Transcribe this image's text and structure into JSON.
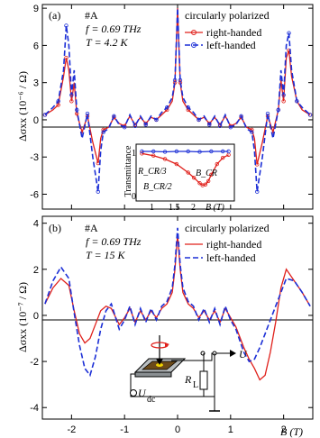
{
  "chart_data": [
    {
      "type": "line",
      "panel": "(a)",
      "ylabel": "Δσxx (10⁻⁶ / Ω)",
      "yticks": [
        -6,
        -3,
        0,
        3,
        6,
        9
      ],
      "ylim": [
        -7.2,
        9.3
      ],
      "xlim": [
        -2.55,
        2.55
      ],
      "sample": "#A",
      "frequency": "f = 0.69 THz",
      "temperature": "T = 4.2 K",
      "legend_title": "circularly polarized",
      "series": [
        {
          "name": "right-handed",
          "color": "#e0201b",
          "style": "solid-circles",
          "x": [
            -2.5,
            -2.35,
            -2.25,
            -2.15,
            -2.1,
            -2.05,
            -2.0,
            -1.95,
            -1.9,
            -1.8,
            -1.7,
            -1.6,
            -1.5,
            -1.45,
            -1.4,
            -1.3,
            -1.2,
            -1.1,
            -1.0,
            -0.9,
            -0.8,
            -0.7,
            -0.6,
            -0.5,
            -0.4,
            -0.3,
            -0.2,
            -0.1,
            -0.05,
            0.0,
            0.05,
            0.1,
            0.2,
            0.3,
            0.4,
            0.5,
            0.6,
            0.7,
            0.8,
            0.9,
            1.0,
            1.1,
            1.2,
            1.3,
            1.4,
            1.45,
            1.5,
            1.6,
            1.7,
            1.8,
            1.9,
            1.95,
            2.0,
            2.05,
            2.1,
            2.15,
            2.25,
            2.35,
            2.5
          ],
          "y": [
            0.4,
            0.8,
            1.2,
            3.5,
            5.0,
            4.0,
            1.5,
            3.0,
            0.5,
            -1.0,
            0.3,
            -1.8,
            -3.5,
            -1.5,
            -0.8,
            -0.6,
            0.2,
            -0.3,
            -0.5,
            0.3,
            -0.4,
            0.2,
            -0.3,
            0.2,
            0.0,
            0.4,
            0.8,
            1.5,
            3.0,
            9.0,
            3.0,
            1.5,
            0.8,
            0.4,
            0.0,
            0.2,
            -0.3,
            0.2,
            -0.4,
            0.3,
            -0.5,
            -0.3,
            0.2,
            -0.6,
            -0.8,
            -1.5,
            -3.6,
            -1.8,
            0.3,
            -1.0,
            0.8,
            3.2,
            1.5,
            5.0,
            5.6,
            3.5,
            1.5,
            0.8,
            0.4
          ]
        },
        {
          "name": "left-handed",
          "color": "#1c2fd6",
          "style": "dashed-circles",
          "x": [
            -2.5,
            -2.35,
            -2.25,
            -2.15,
            -2.1,
            -2.05,
            -2.0,
            -1.95,
            -1.9,
            -1.8,
            -1.7,
            -1.6,
            -1.5,
            -1.45,
            -1.4,
            -1.3,
            -1.2,
            -1.1,
            -1.0,
            -0.9,
            -0.8,
            -0.7,
            -0.6,
            -0.5,
            -0.4,
            -0.3,
            -0.2,
            -0.1,
            -0.05,
            0.0,
            0.05,
            0.1,
            0.2,
            0.3,
            0.4,
            0.5,
            0.6,
            0.7,
            0.8,
            0.9,
            1.0,
            1.1,
            1.2,
            1.3,
            1.4,
            1.45,
            1.5,
            1.6,
            1.7,
            1.8,
            1.9,
            1.95,
            2.0,
            2.05,
            2.1,
            2.15,
            2.25,
            2.35,
            2.5
          ],
          "y": [
            0.4,
            1.0,
            1.5,
            4.0,
            7.6,
            6.0,
            2.0,
            4.0,
            0.8,
            -1.5,
            0.5,
            -3.0,
            -5.8,
            -2.5,
            -1.0,
            -0.7,
            0.3,
            -0.4,
            -0.6,
            0.4,
            -0.5,
            0.3,
            -0.4,
            0.3,
            0.0,
            0.6,
            1.0,
            1.8,
            3.2,
            9.0,
            3.2,
            1.8,
            1.0,
            0.6,
            0.0,
            0.3,
            -0.4,
            0.3,
            -0.5,
            0.4,
            -0.6,
            -0.4,
            0.3,
            -0.7,
            -1.0,
            -2.5,
            -5.8,
            -3.0,
            0.5,
            -1.5,
            0.8,
            4.0,
            2.0,
            6.0,
            7.0,
            4.0,
            1.5,
            1.0,
            0.4
          ]
        }
      ],
      "inset": {
        "ylabel": "Transmittance",
        "xlabel": "B (T)",
        "xticks": [
          "1",
          "1.5",
          "2"
        ],
        "yticks": [
          "1",
          "0"
        ],
        "labels": [
          "R_CR/3",
          "B_CR/2",
          "B_CR"
        ],
        "red_x": [
          0.9,
          1.1,
          1.3,
          1.5,
          1.7,
          1.8,
          1.9,
          1.95,
          2.0,
          2.05,
          2.1,
          2.2,
          2.3,
          2.4
        ],
        "red_y": [
          0.95,
          0.9,
          0.82,
          0.7,
          0.5,
          0.38,
          0.25,
          0.2,
          0.22,
          0.3,
          0.45,
          0.7,
          0.85,
          0.92
        ],
        "blue_x": [
          0.9,
          1.1,
          1.3,
          1.5,
          1.7,
          1.9,
          2.1,
          2.3,
          2.4
        ],
        "blue_y": [
          1.0,
          1.0,
          0.99,
          1.0,
          1.0,
          0.99,
          1.0,
          1.0,
          1.0
        ]
      }
    },
    {
      "type": "line",
      "panel": "(b)",
      "ylabel": "Δσxx (10⁻⁷ / Ω)",
      "xlabel": "B (T)",
      "yticks": [
        -4,
        -2,
        0,
        2,
        4
      ],
      "xticks": [
        -2,
        -1,
        0,
        1,
        2
      ],
      "ylim": [
        -4.5,
        4.3
      ],
      "xlim": [
        -2.55,
        2.55
      ],
      "sample": "#A",
      "frequency": "f = 0.69 THz",
      "temperature": "T = 15 K",
      "legend_title": "circularly polarized",
      "series": [
        {
          "name": "right-handed",
          "color": "#e0201b",
          "style": "solid",
          "x": [
            -2.5,
            -2.35,
            -2.2,
            -2.05,
            -1.95,
            -1.85,
            -1.75,
            -1.65,
            -1.55,
            -1.45,
            -1.35,
            -1.25,
            -1.1,
            -1.0,
            -0.9,
            -0.8,
            -0.7,
            -0.6,
            -0.5,
            -0.4,
            -0.3,
            -0.2,
            -0.1,
            -0.05,
            0.0,
            0.05,
            0.1,
            0.2,
            0.3,
            0.4,
            0.5,
            0.6,
            0.7,
            0.8,
            0.9,
            1.0,
            1.1,
            1.25,
            1.35,
            1.45,
            1.55,
            1.65,
            1.75,
            1.85,
            1.95,
            2.05,
            2.2,
            2.35,
            2.5
          ],
          "y": [
            0.5,
            1.2,
            1.6,
            1.3,
            0.2,
            -0.8,
            -1.2,
            -1.0,
            -0.4,
            0.2,
            0.4,
            0.3,
            -0.4,
            -0.1,
            0.3,
            -0.3,
            0.2,
            -0.2,
            0.2,
            -0.1,
            0.3,
            0.5,
            1.0,
            2.0,
            3.5,
            2.0,
            1.0,
            0.5,
            0.3,
            -0.1,
            0.2,
            -0.2,
            0.2,
            -0.3,
            0.3,
            -0.1,
            -0.5,
            -1.4,
            -1.9,
            -2.3,
            -2.8,
            -2.6,
            -1.6,
            -0.3,
            1.2,
            2.0,
            1.5,
            1.0,
            0.4
          ]
        },
        {
          "name": "left-handed",
          "color": "#1c2fd6",
          "style": "dashed",
          "x": [
            -2.5,
            -2.35,
            -2.2,
            -2.05,
            -1.95,
            -1.85,
            -1.75,
            -1.65,
            -1.55,
            -1.45,
            -1.35,
            -1.25,
            -1.1,
            -1.0,
            -0.9,
            -0.8,
            -0.7,
            -0.6,
            -0.5,
            -0.4,
            -0.3,
            -0.2,
            -0.1,
            -0.05,
            0.0,
            0.05,
            0.1,
            0.2,
            0.3,
            0.4,
            0.5,
            0.6,
            0.7,
            0.8,
            0.9,
            1.0,
            1.1,
            1.25,
            1.35,
            1.45,
            1.55,
            1.65,
            1.75,
            1.85,
            1.95,
            2.05,
            2.2,
            2.35,
            2.5
          ],
          "y": [
            0.5,
            1.5,
            2.1,
            1.6,
            0.1,
            -1.3,
            -2.3,
            -2.6,
            -1.8,
            -0.6,
            0.2,
            0.5,
            -0.6,
            -0.2,
            0.4,
            -0.4,
            0.3,
            -0.3,
            0.3,
            -0.2,
            0.4,
            0.6,
            1.2,
            2.2,
            3.8,
            2.2,
            1.2,
            0.6,
            0.4,
            -0.2,
            0.3,
            -0.3,
            0.3,
            -0.4,
            0.4,
            -0.2,
            -0.6,
            -1.6,
            -2.0,
            -1.9,
            -1.4,
            -0.8,
            -0.2,
            0.4,
            1.0,
            1.6,
            1.5,
            1.0,
            0.4
          ]
        }
      ],
      "schematic_labels": {
        "u": "U",
        "udc": "U",
        "udc_sub": "dc",
        "rl": "R",
        "rl_sub": "L"
      }
    }
  ]
}
